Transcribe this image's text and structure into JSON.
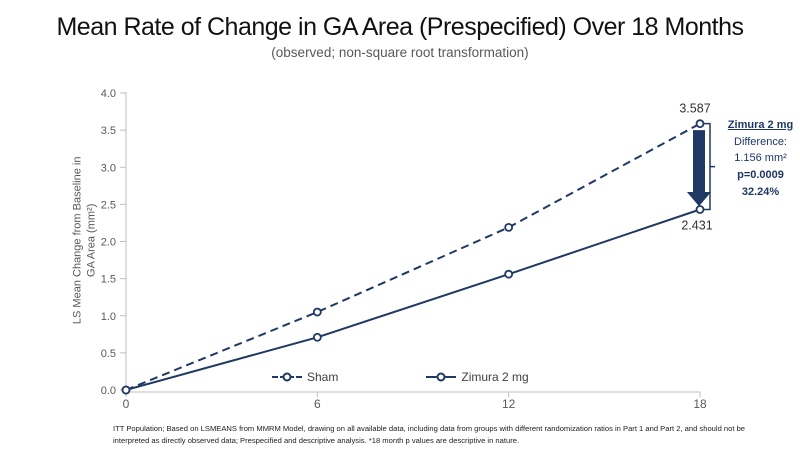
{
  "slide": {
    "title": "Mean Rate of Change in GA Area (Prespecified) Over 18 Months",
    "subtitle": "(observed; non-square root transformation)",
    "footnote_line1": "ITT Population; Based on LSMEANS from MMRM Model, drawing on all available data, including data from groups with different randomization ratios in Part 1 and Part 2, and should not be",
    "footnote_line2": "interpreted as directly observed data; Prespecified and descriptive analysis. *18 month p values are descriptive in nature."
  },
  "chart_data": {
    "type": "line",
    "x": [
      0,
      6,
      12,
      18
    ],
    "x_ticks": [
      "0",
      "6",
      "12",
      "18"
    ],
    "y_ticks": [
      "0.0",
      "0.5",
      "1.0",
      "1.5",
      "2.0",
      "2.5",
      "3.0",
      "3.5",
      "4.0"
    ],
    "xlim": [
      0,
      18
    ],
    "ylim": [
      0,
      4
    ],
    "grid": false,
    "legend_position": "bottom-center",
    "ylabel": "LS Mean Change from Baseline in GA Area (mm²)",
    "ylabel_line1": "LS Mean Change from Baseline in",
    "ylabel_line2": "GA Area (mm²)",
    "series": [
      {
        "name": "Sham",
        "style": "dashed",
        "values": [
          0,
          1.05,
          2.19,
          3.587
        ],
        "end_label": "3.587"
      },
      {
        "name": "Zimura 2 mg",
        "style": "solid",
        "values": [
          0,
          0.71,
          1.56,
          2.431
        ],
        "end_label": "2.431"
      }
    ]
  },
  "annotation": {
    "heading": "Zimura 2 mg",
    "difference_label": "Difference:",
    "difference_value": "1.156 mm²",
    "p_value": "p=0.0009",
    "percent_reduction": "32.24%"
  },
  "colors": {
    "series_navy": "#1F3864",
    "axis_line": "#BFBFBF",
    "tick_text": "#595959",
    "data_label_text": "#333333"
  }
}
